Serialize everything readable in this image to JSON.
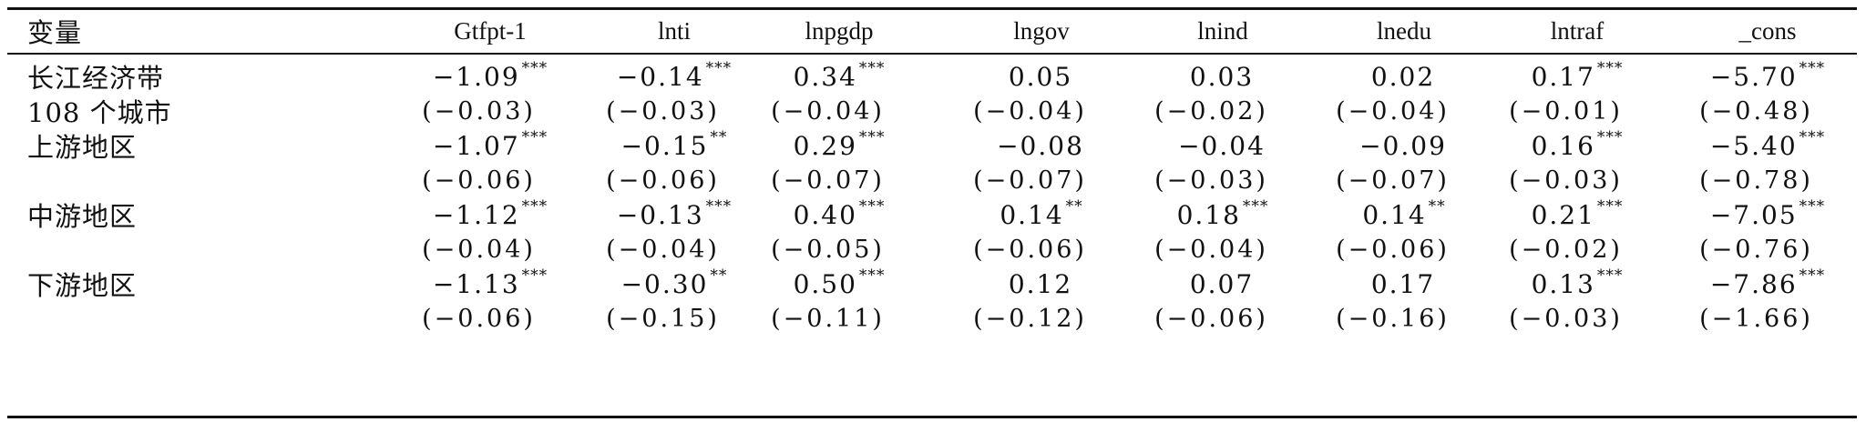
{
  "table": {
    "headers": [
      "变量",
      "Gtfpt-1",
      "lnti",
      "lnpgdp",
      "lngov",
      "lnind",
      "lnedu",
      "lntraf",
      "_cons"
    ],
    "rows": [
      {
        "label": "长江经济带",
        "coef": [
          {
            "v": "−1.09",
            "s": "***"
          },
          {
            "v": "−0.14",
            "s": "***"
          },
          {
            "v": "0.34",
            "s": "***"
          },
          {
            "v": "0.05",
            "s": ""
          },
          {
            "v": "0.03",
            "s": ""
          },
          {
            "v": "0.02",
            "s": ""
          },
          {
            "v": "0.17",
            "s": "***"
          },
          {
            "v": "−5.70",
            "s": "***"
          }
        ],
        "se_label": "108 个城市",
        "se": [
          "(−0.03)",
          "(−0.03)",
          "(−0.04)",
          "(−0.04)",
          "(−0.02)",
          "(−0.04)",
          "(−0.01)",
          "(−0.48)"
        ]
      },
      {
        "label": "上游地区",
        "coef": [
          {
            "v": "−1.07",
            "s": "***"
          },
          {
            "v": "−0.15",
            "s": "**"
          },
          {
            "v": "0.29",
            "s": "***"
          },
          {
            "v": "−0.08",
            "s": ""
          },
          {
            "v": "−0.04",
            "s": ""
          },
          {
            "v": "−0.09",
            "s": ""
          },
          {
            "v": "0.16",
            "s": "***"
          },
          {
            "v": "−5.40",
            "s": "***"
          }
        ],
        "se_label": "",
        "se": [
          "(−0.06)",
          "(−0.06)",
          "(−0.07)",
          "(−0.07)",
          "(−0.03)",
          "(−0.07)",
          "(−0.03)",
          "(−0.78)"
        ]
      },
      {
        "label": "中游地区",
        "coef": [
          {
            "v": "−1.12",
            "s": "***"
          },
          {
            "v": "−0.13",
            "s": "***"
          },
          {
            "v": "0.40",
            "s": "***"
          },
          {
            "v": "0.14",
            "s": "**"
          },
          {
            "v": "0.18",
            "s": "***"
          },
          {
            "v": "0.14",
            "s": "**"
          },
          {
            "v": "0.21",
            "s": "***"
          },
          {
            "v": "−7.05",
            "s": "***"
          }
        ],
        "se_label": "",
        "se": [
          "(−0.04)",
          "(−0.04)",
          "(−0.05)",
          "(−0.06)",
          "(−0.04)",
          "(−0.06)",
          "(−0.02)",
          "(−0.76)"
        ]
      },
      {
        "label": "下游地区",
        "coef": [
          {
            "v": "−1.13",
            "s": "***"
          },
          {
            "v": "−0.30",
            "s": "**"
          },
          {
            "v": "0.50",
            "s": "***"
          },
          {
            "v": "0.12",
            "s": ""
          },
          {
            "v": "0.07",
            "s": ""
          },
          {
            "v": "0.17",
            "s": ""
          },
          {
            "v": "0.13",
            "s": "***"
          },
          {
            "v": "−7.86",
            "s": "***"
          }
        ],
        "se_label": "",
        "se": [
          "(−0.06)",
          "(−0.15)",
          "(−0.11)",
          "(−0.12)",
          "(−0.06)",
          "(−0.16)",
          "(−0.03)",
          "(−1.66)"
        ]
      }
    ]
  }
}
